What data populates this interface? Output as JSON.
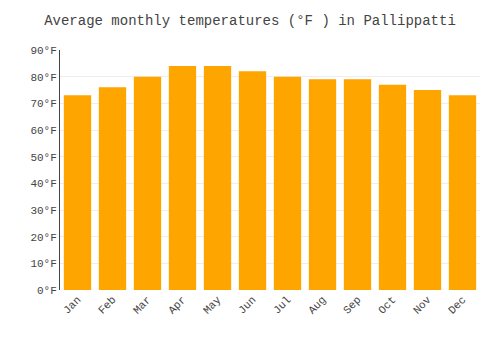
{
  "chart_data": {
    "type": "bar",
    "title": "Average monthly temperatures (°F ) in Pallippatti",
    "categories": [
      "Jan",
      "Feb",
      "Mar",
      "Apr",
      "May",
      "Jun",
      "Jul",
      "Aug",
      "Sep",
      "Oct",
      "Nov",
      "Dec"
    ],
    "values": [
      73,
      76,
      80,
      84,
      84,
      82,
      80,
      79,
      79,
      77,
      75,
      73
    ],
    "color": "#FFA500",
    "ylim": [
      0,
      90
    ],
    "yticks": [
      {
        "value": 0,
        "label": "0°F"
      },
      {
        "value": 10,
        "label": "10°F"
      },
      {
        "value": 20,
        "label": "20°F"
      },
      {
        "value": 30,
        "label": "30°F"
      },
      {
        "value": 40,
        "label": "40°F"
      },
      {
        "value": 50,
        "label": "50°F"
      },
      {
        "value": 60,
        "label": "60°F"
      },
      {
        "value": 70,
        "label": "70°F"
      },
      {
        "value": 80,
        "label": "80°F"
      },
      {
        "value": 90,
        "label": "90°F"
      }
    ],
    "grid": true
  }
}
